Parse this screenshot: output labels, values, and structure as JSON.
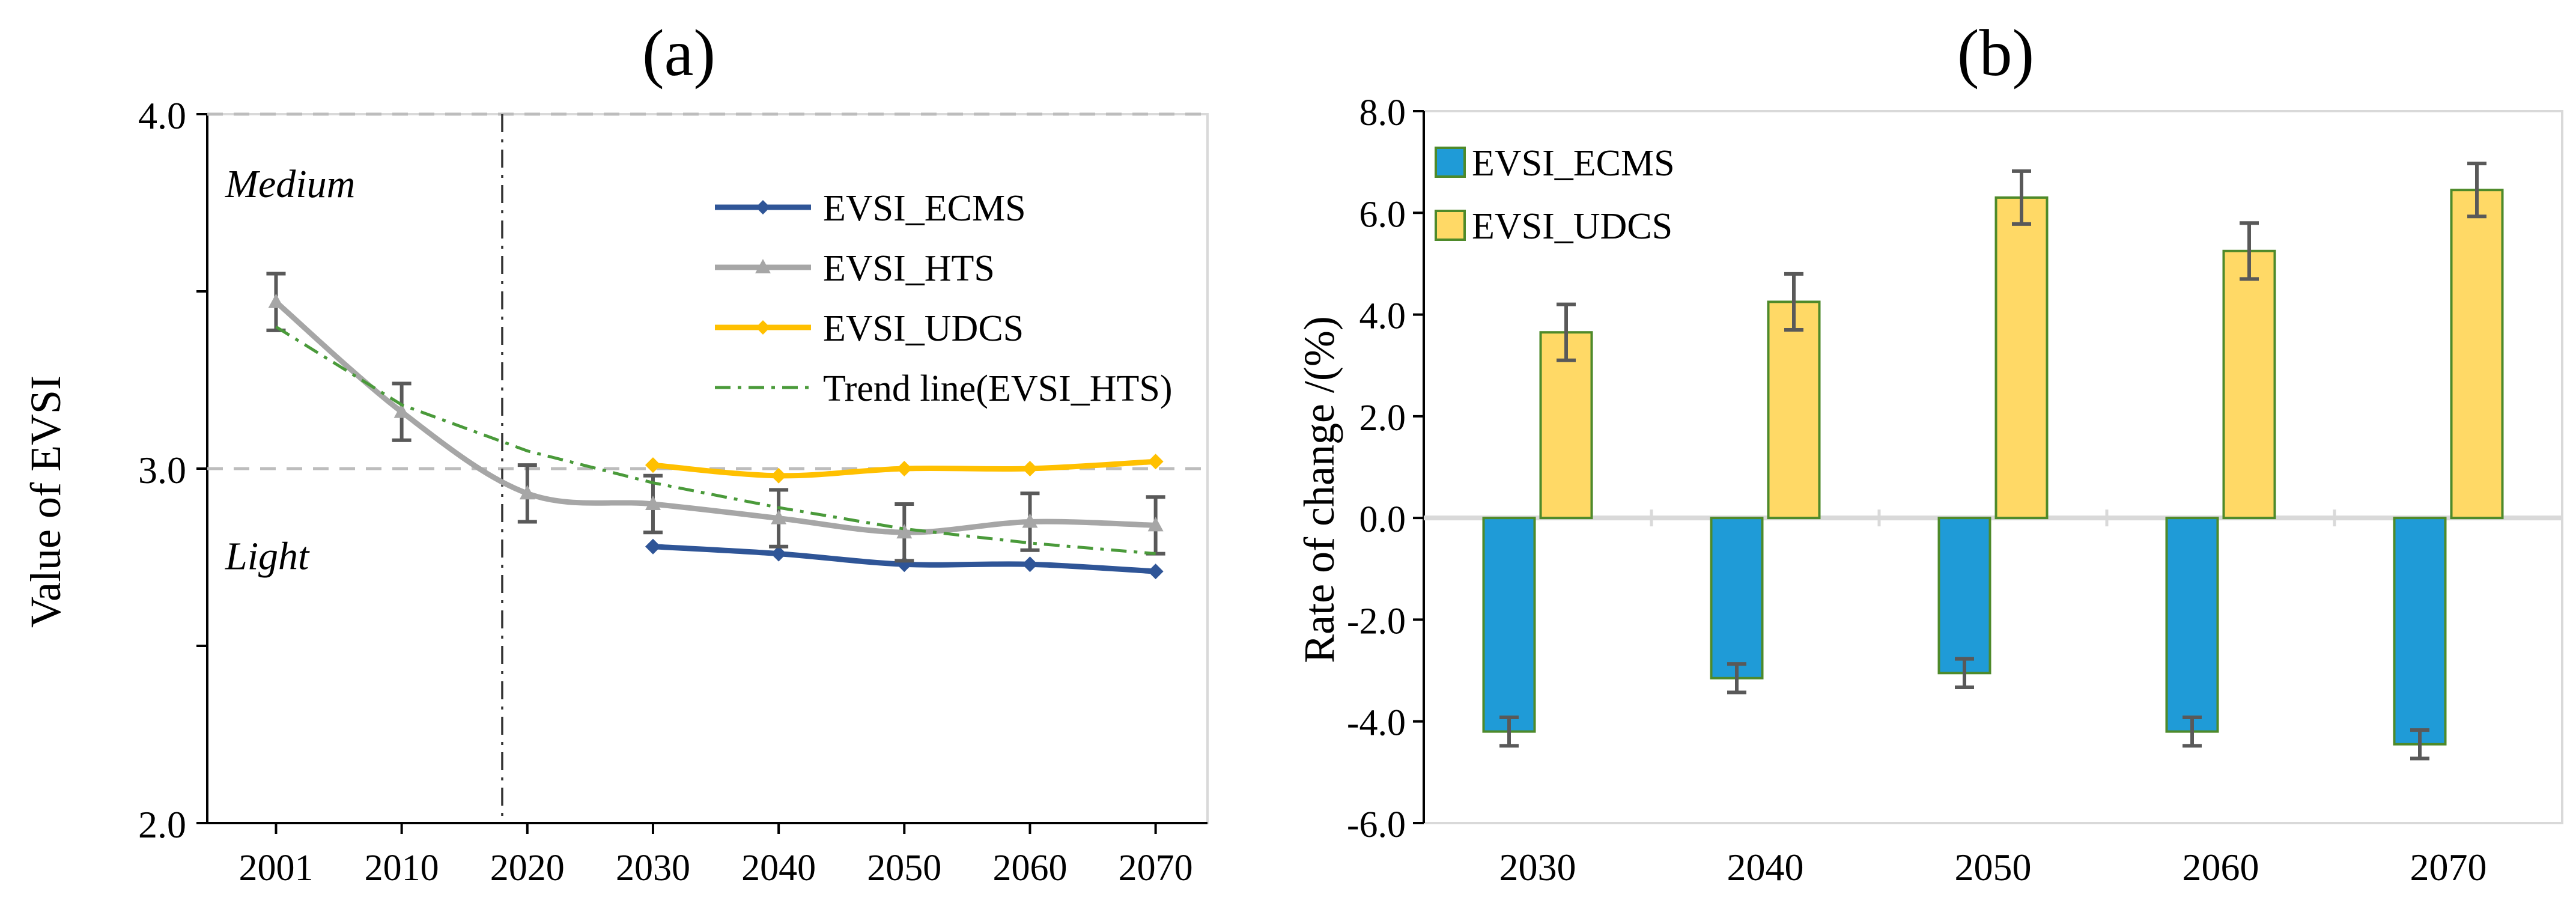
{
  "chart_data": [
    {
      "type": "line",
      "panel_label": "(a)",
      "ylabel": "Value of EVSI",
      "ylim": [
        2.0,
        4.0
      ],
      "yticks": [
        "2.0",
        "3.0",
        "4.0"
      ],
      "x": [
        "2001",
        "2010",
        "2020",
        "2030",
        "2040",
        "2050",
        "2060",
        "2070"
      ],
      "zone_labels": {
        "medium": "Medium",
        "light": "Light"
      },
      "reference_lines": [
        3.0,
        4.0
      ],
      "divider_after": "2018",
      "series": [
        {
          "name": "EVSI_ECMS",
          "color": "#2f5597",
          "points": [
            [
              2030,
              2.78
            ],
            [
              2040,
              2.76
            ],
            [
              2050,
              2.73
            ],
            [
              2060,
              2.73
            ],
            [
              2070,
              2.71
            ]
          ]
        },
        {
          "name": "EVSI_HTS",
          "color": "#a6a6a6",
          "points": [
            [
              2001,
              3.47
            ],
            [
              2010,
              3.16
            ],
            [
              2020,
              2.93
            ],
            [
              2030,
              2.9
            ],
            [
              2040,
              2.86
            ],
            [
              2050,
              2.82
            ],
            [
              2060,
              2.85
            ],
            [
              2070,
              2.84
            ]
          ],
          "errors": [
            0.08,
            0.08,
            0.08,
            0.08,
            0.08,
            0.08,
            0.08,
            0.08
          ]
        },
        {
          "name": "EVSI_UDCS",
          "color": "#ffc000",
          "points": [
            [
              2030,
              3.01
            ],
            [
              2040,
              2.98
            ],
            [
              2050,
              3.0
            ],
            [
              2060,
              3.0
            ],
            [
              2070,
              3.02
            ]
          ]
        },
        {
          "name": "Trend line(EVSI_HTS)",
          "color": "#4a9a3a",
          "style": "dashdot",
          "points": [
            [
              2001,
              3.4
            ],
            [
              2010,
              3.18
            ],
            [
              2020,
              3.05
            ],
            [
              2030,
              2.96
            ],
            [
              2040,
              2.89
            ],
            [
              2050,
              2.83
            ],
            [
              2060,
              2.79
            ],
            [
              2070,
              2.76
            ]
          ]
        }
      ]
    },
    {
      "type": "bar",
      "panel_label": "(b)",
      "ylabel": "Rate of change /(%)",
      "ylim": [
        -6.0,
        8.0
      ],
      "yticks": [
        "-6.0",
        "-4.0",
        "-2.0",
        "0.0",
        "2.0",
        "4.0",
        "6.0",
        "8.0"
      ],
      "categories": [
        "2030",
        "2040",
        "2050",
        "2060",
        "2070"
      ],
      "series": [
        {
          "name": "EVSI_ECMS",
          "color": "#1f9bd7",
          "values": [
            -4.2,
            -3.15,
            -3.05,
            -4.2,
            -4.45
          ],
          "errors": [
            0.28,
            0.28,
            0.28,
            0.28,
            0.28
          ]
        },
        {
          "name": "EVSI_UDCS",
          "color": "#ffd966",
          "values": [
            3.65,
            4.25,
            6.3,
            5.25,
            6.45
          ],
          "errors": [
            0.55,
            0.55,
            0.52,
            0.55,
            0.52
          ]
        }
      ]
    }
  ]
}
